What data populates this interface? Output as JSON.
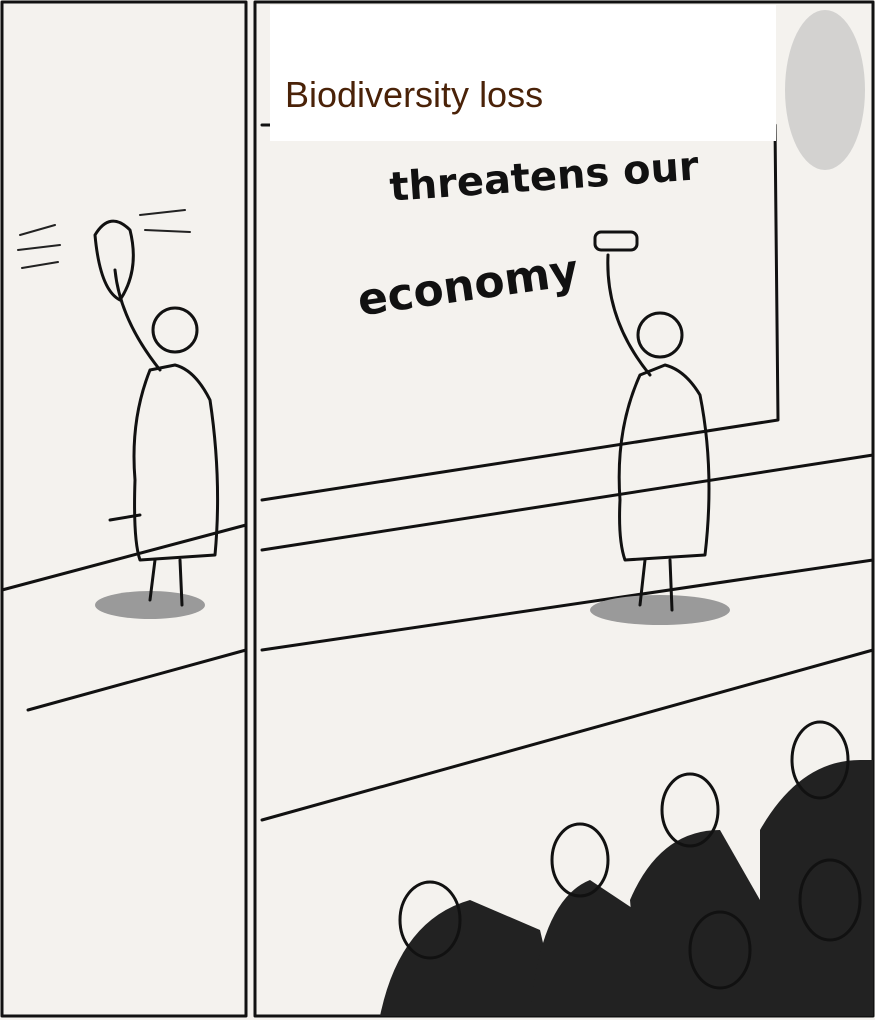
{
  "caption": "Biodiversity loss",
  "board_text": [
    "threatens our",
    "economy"
  ]
}
